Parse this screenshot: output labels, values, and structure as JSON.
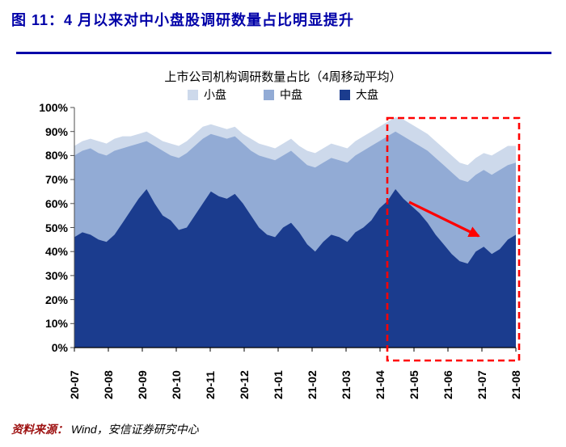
{
  "figure": {
    "title": "图 11：4 月以来对中小盘股调研数量占比明显提升",
    "source_label": "资料来源：",
    "source_text": "Wind，安信证券研究中心",
    "title_color": "#0000A8",
    "source_label_color": "#9E1212"
  },
  "chart": {
    "title": "上市公司机构调研数量占比（4周移动平均）",
    "legend": [
      {
        "label": "小盘",
        "color": "#CDD9EB"
      },
      {
        "label": "中盘",
        "color": "#92ABD5"
      },
      {
        "label": "大盘",
        "color": "#1B3C8E"
      }
    ],
    "accent_red": "#FF0000"
  },
  "chart_data": {
    "type": "area",
    "stacked": true,
    "unit": "%",
    "ylim": [
      0,
      100
    ],
    "grid": false,
    "legend_position": "top",
    "yticks": [
      "100%",
      "90%",
      "80%",
      "70%",
      "60%",
      "50%",
      "40%",
      "30%",
      "20%",
      "10%",
      "0%"
    ],
    "x_labels": [
      "20-07",
      "20-08",
      "20-09",
      "20-10",
      "20-11",
      "20-12",
      "21-01",
      "21-02",
      "21-03",
      "21-04",
      "21-05",
      "21-06",
      "21-07",
      "21-08"
    ],
    "series": [
      {
        "name": "大盘",
        "color": "#1B3C8E",
        "values": [
          46,
          48,
          47,
          45,
          44,
          47,
          52,
          57,
          62,
          66,
          60,
          55,
          53,
          49,
          50,
          55,
          60,
          65,
          63,
          62,
          64,
          60,
          55,
          50,
          47,
          46,
          50,
          52,
          48,
          43,
          40,
          44,
          47,
          46,
          44,
          48,
          50,
          53,
          58,
          61,
          66,
          62,
          59,
          56,
          52,
          47,
          43,
          39,
          36,
          35,
          40,
          42,
          39,
          41,
          45,
          47
        ]
      },
      {
        "name": "中盘",
        "color": "#92ABD5",
        "values": [
          34,
          34,
          36,
          36,
          36,
          35,
          31,
          27,
          23,
          20,
          24,
          27,
          27,
          30,
          31,
          29,
          27,
          24,
          25,
          25,
          24,
          25,
          27,
          30,
          32,
          32,
          30,
          30,
          31,
          33,
          35,
          33,
          32,
          32,
          33,
          32,
          32,
          31,
          28,
          27,
          24,
          26,
          27,
          28,
          30,
          32,
          33,
          34,
          34,
          34,
          32,
          32,
          33,
          33,
          31,
          30
        ]
      },
      {
        "name": "小盘",
        "color": "#CDD9EB",
        "values": [
          4,
          4,
          4,
          5,
          5,
          5,
          5,
          4,
          4,
          4,
          4,
          4,
          5,
          5,
          5,
          5,
          5,
          4,
          4,
          4,
          4,
          4,
          5,
          5,
          5,
          5,
          5,
          5,
          5,
          6,
          6,
          6,
          6,
          6,
          6,
          6,
          6,
          6,
          6,
          6,
          6,
          7,
          7,
          7,
          7,
          7,
          7,
          7,
          7,
          7,
          7,
          7,
          8,
          8,
          8,
          7
        ]
      }
    ],
    "annotations": {
      "highlight_box": {
        "x_from": "21-04",
        "x_to": "21-08",
        "style": "red dashed rectangle"
      },
      "arrow": {
        "direction": "down-right",
        "color": "#FF0000",
        "meaning": "大盘占比下行"
      }
    }
  }
}
